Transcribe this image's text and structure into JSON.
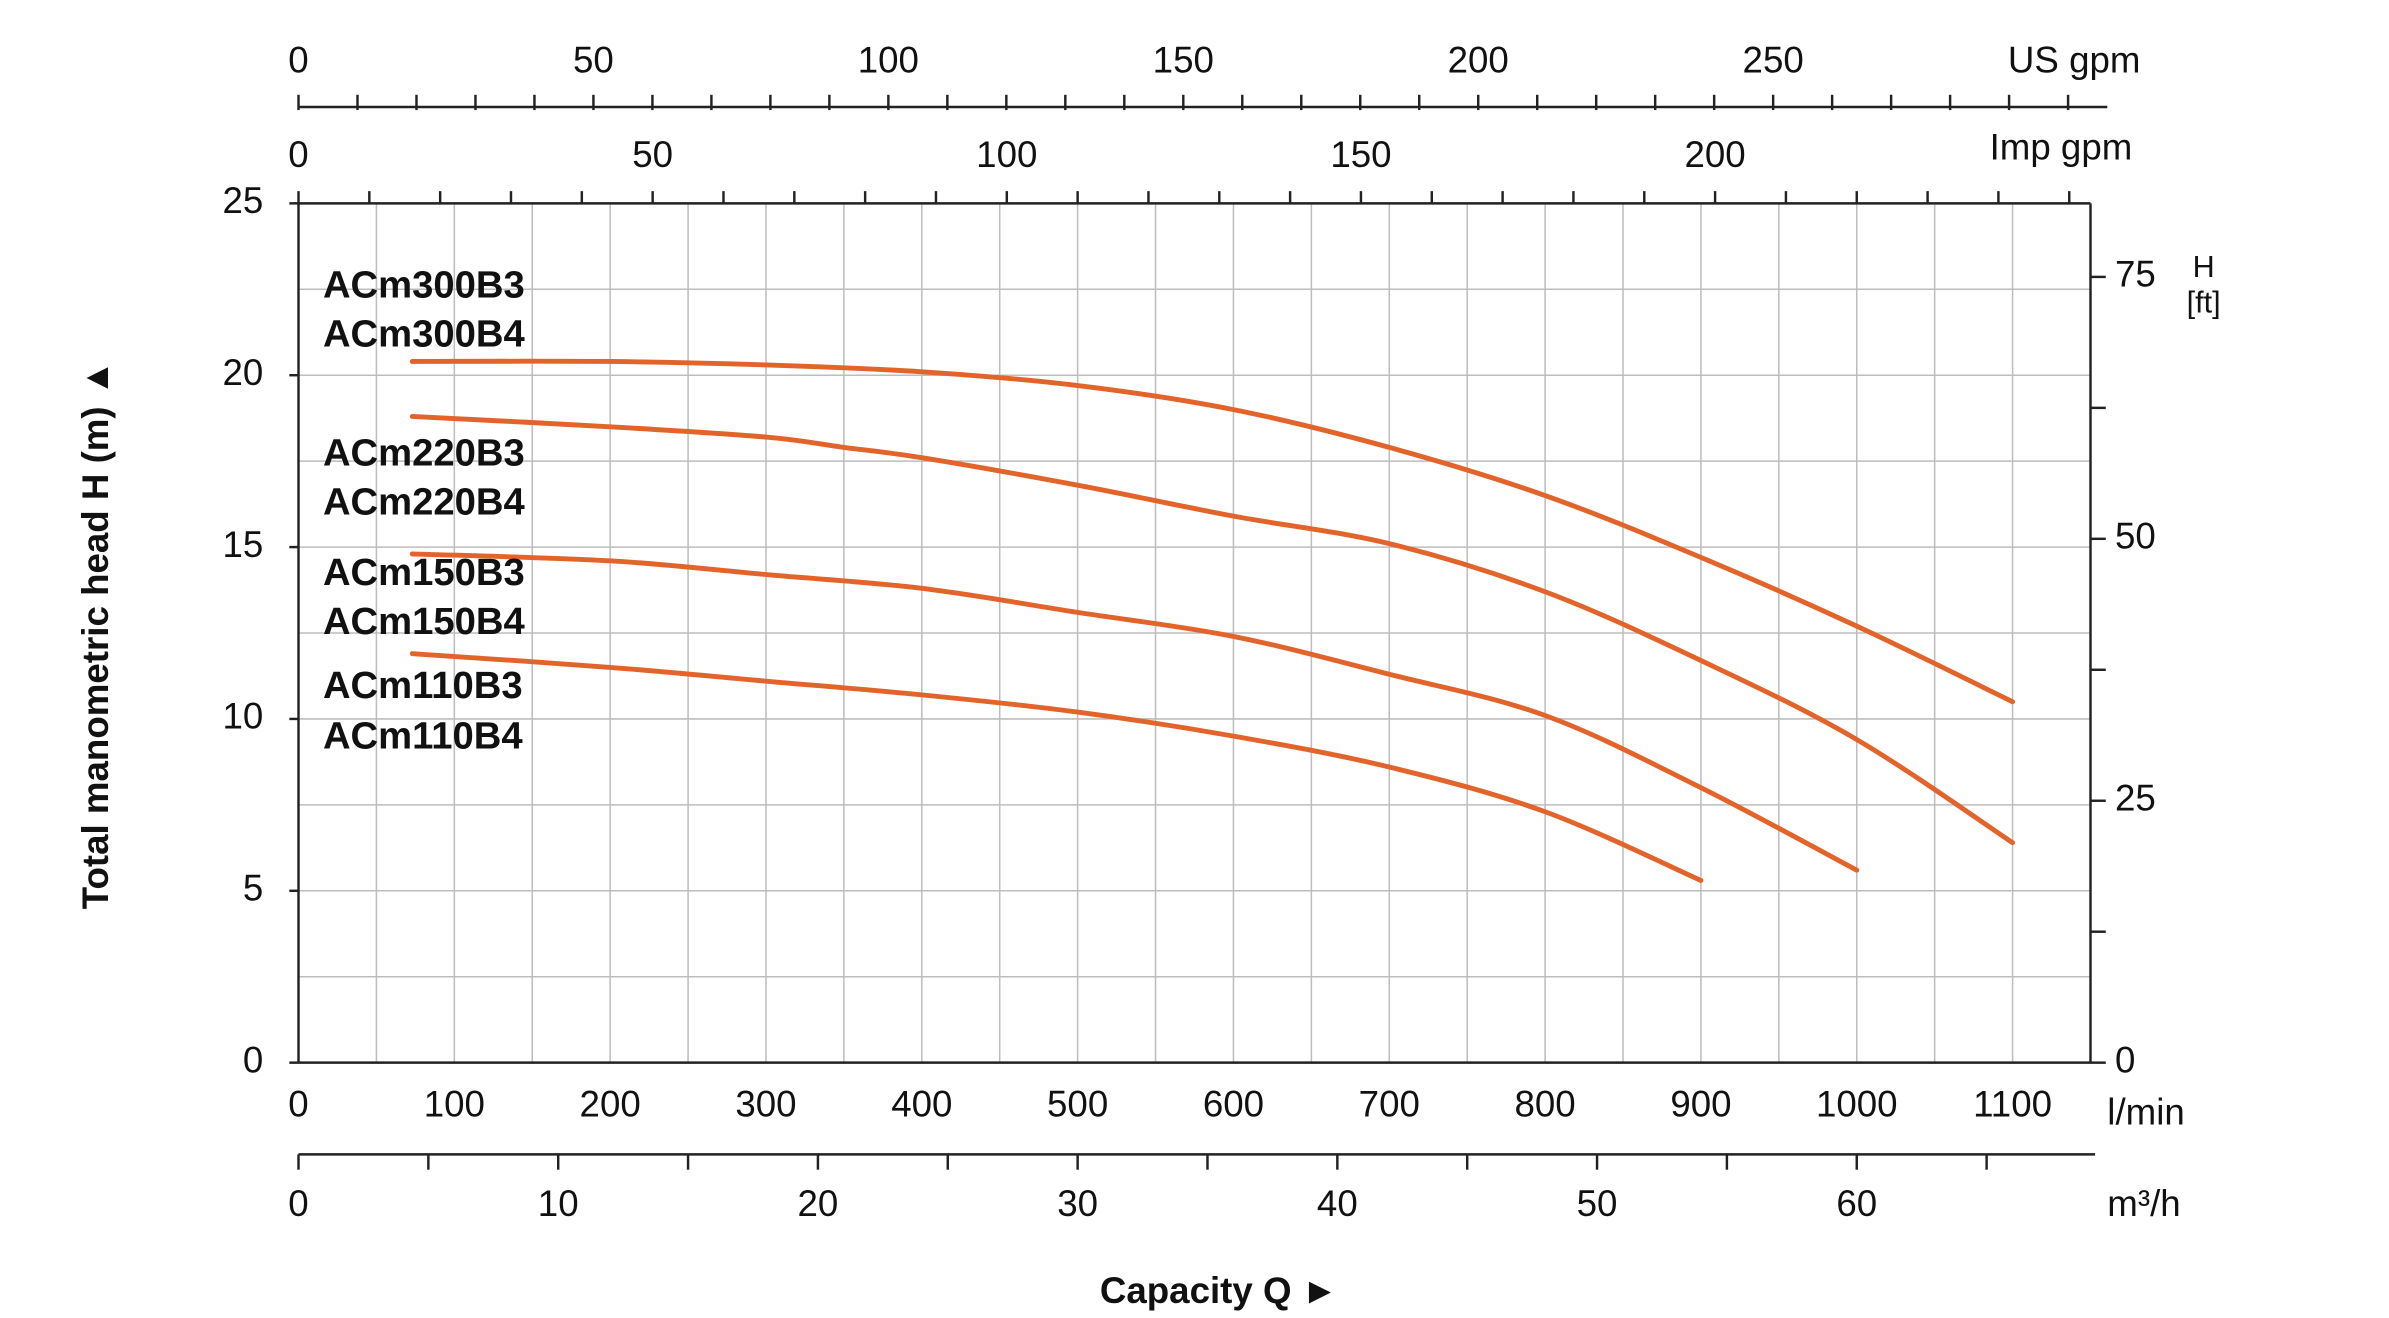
{
  "chart_data": {
    "type": "line",
    "x_label": "Capacity Q  ►",
    "y_label": "Total manometric head H (m)  ▲",
    "x_unit": "l/min",
    "xlim": [
      0,
      1150
    ],
    "xticks": [
      0,
      100,
      200,
      300,
      400,
      500,
      600,
      700,
      800,
      900,
      1000,
      1100
    ],
    "x_gridlines": [
      50,
      100,
      150,
      200,
      250,
      300,
      350,
      400,
      450,
      500,
      550,
      600,
      650,
      700,
      750,
      800,
      850,
      900,
      950,
      1000,
      1050,
      1100
    ],
    "ylim": [
      0,
      25
    ],
    "yticks": [
      0,
      5,
      10,
      15,
      20,
      25
    ],
    "y_gridlines": [
      2.5,
      5,
      7.5,
      10,
      12.5,
      15,
      17.5,
      20,
      22.5
    ],
    "grid": true,
    "y2_label": [
      "H",
      "[ft]"
    ],
    "y2lim": [
      0,
      82.02
    ],
    "y2ticks": [
      0,
      25,
      50,
      75
    ],
    "y2_minor_ticks": [
      12.5,
      37.5,
      62.5
    ],
    "secondary_x_axes": [
      {
        "unit": "m³/h",
        "position": "bottom",
        "lim": [
          0,
          69
        ],
        "ticks": [
          0,
          10,
          20,
          30,
          40,
          50,
          60
        ],
        "minor_ticks": [
          5,
          15,
          25,
          35,
          45,
          55,
          65
        ]
      },
      {
        "unit": "US gpm",
        "position": "top",
        "lim": [
          0,
          303.8
        ],
        "ticks": [
          0,
          50,
          100,
          150,
          200,
          250
        ],
        "minor_ticks": [
          10,
          20,
          30,
          40,
          60,
          70,
          80,
          90,
          110,
          120,
          130,
          140,
          160,
          170,
          180,
          190,
          210,
          220,
          230,
          240,
          260,
          270,
          280,
          290,
          300
        ]
      },
      {
        "unit": "Imp gpm",
        "position": "plot-top",
        "lim": [
          0,
          253
        ],
        "ticks": [
          0,
          50,
          100,
          150,
          200
        ],
        "minor_ticks": [
          10,
          20,
          30,
          40,
          60,
          70,
          80,
          90,
          110,
          120,
          130,
          140,
          160,
          170,
          180,
          190,
          210,
          220,
          230,
          240,
          250
        ]
      }
    ],
    "series": [
      {
        "labels": [
          "ACm300B3",
          "ACm300B4"
        ],
        "color": "#e2642a",
        "x": [
          73,
          200,
          300,
          400,
          500,
          600,
          700,
          800,
          900,
          1000,
          1100
        ],
        "values": [
          20.4,
          20.4,
          20.3,
          20.1,
          19.7,
          19.0,
          17.9,
          16.5,
          14.7,
          12.7,
          10.5
        ]
      },
      {
        "labels": [
          "ACm220B3",
          "ACm220B4"
        ],
        "color": "#e2642a",
        "x": [
          73,
          200,
          300,
          350,
          400,
          500,
          600,
          700,
          800,
          900,
          1000,
          1100
        ],
        "values": [
          18.8,
          18.5,
          18.2,
          17.9,
          17.6,
          16.8,
          15.9,
          15.1,
          13.7,
          11.7,
          9.4,
          6.4
        ]
      },
      {
        "labels": [
          "ACm150B3",
          "ACm150B4"
        ],
        "color": "#e2642a",
        "x": [
          73,
          200,
          300,
          400,
          500,
          600,
          700,
          800,
          900,
          1000
        ],
        "values": [
          14.8,
          14.6,
          14.2,
          13.8,
          13.1,
          12.4,
          11.3,
          10.1,
          8.0,
          5.6
        ]
      },
      {
        "labels": [
          "ACm110B3",
          "ACm110B4"
        ],
        "color": "#e2642a",
        "x": [
          73,
          200,
          300,
          400,
          500,
          600,
          700,
          800,
          900
        ],
        "values": [
          11.9,
          11.5,
          11.1,
          10.7,
          10.2,
          9.5,
          8.6,
          7.3,
          5.3
        ]
      }
    ]
  }
}
